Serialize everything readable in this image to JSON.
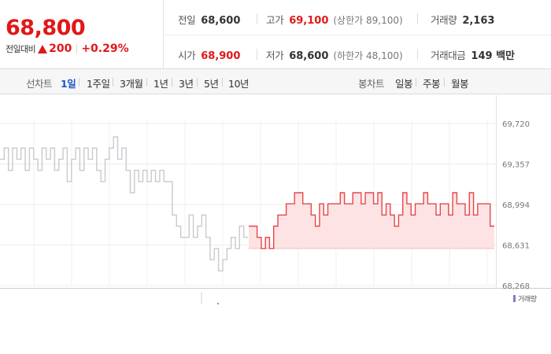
{
  "quote": {
    "price": "68,800",
    "change_label": "전일대비",
    "change_amount": "200",
    "change_percent": "+0.29%",
    "prev_close_label": "전일",
    "prev_close": "68,600",
    "high_label": "고가",
    "high": "69,100",
    "upper_limit": "(상한가 89,100)",
    "volume_label": "거래량",
    "volume": "2,163",
    "open_label": "시가",
    "open": "68,900",
    "low_label": "저가",
    "low": "68,600",
    "lower_limit": "(하한가 48,100)",
    "amount_label": "거래대금",
    "amount": "149 백만"
  },
  "tabs": {
    "line_label": "선차트",
    "line_periods": [
      "1일",
      "1주일",
      "3개월",
      "1년",
      "3년",
      "5년",
      "10년"
    ],
    "active_period": "1일",
    "candle_label": "봉차트",
    "candle_periods": [
      "일봉",
      "주봉",
      "월봉"
    ]
  },
  "volume_legend": "거래량",
  "colors": {
    "up": "#e01818",
    "today_line": "#e8464a",
    "today_fill": "#fde3e4",
    "prev_line": "#c9c9cf",
    "active_tab": "#1e56c4",
    "volume": "#8a78c8"
  },
  "chart_data": {
    "type": "line",
    "ylim": [
      68268,
      69720
    ],
    "yticks": [
      "69,720",
      "69,357",
      "68,994",
      "68,631",
      "68,268"
    ],
    "grid": true,
    "baseline": 68600,
    "series": [
      {
        "values": [
          69400,
          69500,
          69300,
          69500,
          69400,
          69500,
          69300,
          69500,
          69400,
          69300,
          69500,
          69400,
          69500,
          69300,
          69400,
          69500,
          69200,
          69400,
          69500,
          69300,
          69500,
          69400,
          69500,
          69300,
          69200,
          69400,
          69500,
          69600,
          69400,
          69500,
          69300,
          69100,
          69300,
          69200,
          69300,
          69200,
          69300,
          69200,
          69300,
          69200,
          69200,
          68900,
          68800,
          68700,
          68700,
          68900,
          68700,
          68800,
          68900,
          68700,
          68500,
          68600,
          68400,
          68500,
          68600,
          68700,
          68600,
          68800,
          68700,
          68700
        ]
      },
      {
        "values": [
          68800,
          68800,
          68700,
          68600,
          68700,
          68600,
          68800,
          68900,
          68900,
          69000,
          69000,
          69100,
          69100,
          69000,
          69000,
          68900,
          68800,
          69000,
          68900,
          69000,
          69000,
          69000,
          69100,
          69000,
          69000,
          69100,
          69100,
          69000,
          69100,
          69100,
          69000,
          69100,
          68900,
          69000,
          68900,
          68800,
          68900,
          69100,
          69000,
          68900,
          69000,
          69000,
          69100,
          69000,
          69000,
          68900,
          69000,
          69000,
          68900,
          69100,
          69000,
          69000,
          68900,
          69100,
          68900,
          69000,
          69000,
          69000,
          68800,
          68800
        ]
      }
    ]
  }
}
